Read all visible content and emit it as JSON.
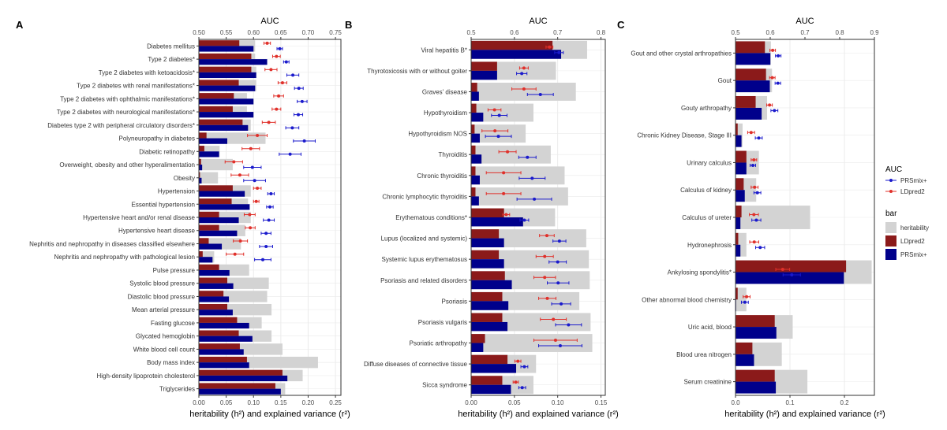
{
  "chart_data": [
    {
      "type": "bar",
      "panel": "A",
      "title_top": "AUC",
      "xlabel": "heritability (h²) and explained variance (r²)",
      "xlim": [
        0,
        0.26
      ],
      "x_ticks": [
        0.0,
        0.05,
        0.1,
        0.15,
        0.2,
        0.25
      ],
      "x_tick_labels": [
        "0.00",
        "0.05",
        "0.10",
        "0.15",
        "0.20",
        "0.25"
      ],
      "auc_lim": [
        0.5,
        0.76
      ],
      "auc_ticks": [
        0.5,
        0.55,
        0.6,
        0.65,
        0.7,
        0.75
      ],
      "auc_tick_labels": [
        "0.50",
        "0.55",
        "0.60",
        "0.65",
        "0.70",
        "0.75"
      ],
      "categories": [
        "Diabetes mellitus",
        "Type 2 diabetes*",
        "Type 2 diabetes with ketoacidosis*",
        "Type 2 diabetes with renal manifestations*",
        "Type 2 diabetes with ophthalmic manifestations*",
        "Type 2 diabetes with neurological manifestations*",
        "Diabetes type 2 with peripheral circulatory disorders*",
        "Polyneuropathy in diabetes",
        "Diabetic retinopathy",
        "Overweight, obesity and other hyperalimentation",
        "Obesity",
        "Hypertension",
        "Essential hypertension",
        "Hypertensive heart and/or renal disease",
        "Hypertensive heart disease",
        "Nephritis and nephropathy in diseases classified elsewhere",
        "Nephritis and nephropathy with pathological lesion",
        "Pulse pressure",
        "Systolic blood pressure",
        "Diastolic blood pressure",
        "Mean arterial pressure",
        "Fasting glucose",
        "Glycated hemoglobin",
        "White blood cell count",
        "Body mass index",
        "High-density lipoprotein cholesterol",
        "Triglycerides"
      ],
      "series": [
        {
          "name": "heritability",
          "values": [
            0.103,
            0.103,
            0.105,
            0.105,
            0.088,
            0.088,
            0.095,
            0.122,
            0.038,
            0.062,
            0.035,
            0.095,
            0.09,
            0.095,
            0.085,
            0.077,
            0.028,
            0.092,
            0.128,
            0.125,
            0.133,
            0.115,
            0.133,
            0.153,
            0.218,
            0.19,
            0.158
          ]
        },
        {
          "name": "LDpred2",
          "values": [
            0.074,
            0.096,
            0.096,
            0.073,
            0.064,
            0.062,
            0.08,
            0.014,
            0.01,
            0.004,
            0.002,
            0.062,
            0.06,
            0.037,
            0.037,
            0.018,
            0.007,
            0.037,
            0.052,
            0.045,
            0.052,
            0.07,
            0.073,
            0.075,
            0.088,
            0.153,
            0.14
          ]
        },
        {
          "name": "PRSmix+",
          "values": [
            0.1,
            0.125,
            0.105,
            0.103,
            0.1,
            0.1,
            0.09,
            0.052,
            0.037,
            0.006,
            0.005,
            0.084,
            0.093,
            0.073,
            0.07,
            0.042,
            0.025,
            0.056,
            0.063,
            0.055,
            0.062,
            0.092,
            0.098,
            0.082,
            0.092,
            0.162,
            0.15
          ]
        }
      ],
      "auc_ldpred2": [
        [
          0.625,
          0.006
        ],
        [
          0.642,
          0.007
        ],
        [
          0.632,
          0.011
        ],
        [
          0.653,
          0.008
        ],
        [
          0.646,
          0.009
        ],
        [
          0.642,
          0.008
        ],
        [
          0.628,
          0.012
        ],
        [
          0.607,
          0.018
        ],
        [
          0.595,
          0.016
        ],
        [
          0.564,
          0.016
        ],
        [
          0.575,
          0.016
        ],
        [
          0.607,
          0.007
        ],
        [
          0.605,
          0.005
        ],
        [
          0.593,
          0.01
        ],
        [
          0.594,
          0.009
        ],
        [
          0.576,
          0.013
        ],
        [
          0.566,
          0.016
        ]
      ],
      "auc_prsmix": [
        [
          0.648,
          0.005
        ],
        [
          0.66,
          0.005
        ],
        [
          0.672,
          0.011
        ],
        [
          0.683,
          0.008
        ],
        [
          0.689,
          0.009
        ],
        [
          0.682,
          0.008
        ],
        [
          0.671,
          0.012
        ],
        [
          0.693,
          0.02
        ],
        [
          0.667,
          0.02
        ],
        [
          0.598,
          0.016
        ],
        [
          0.602,
          0.02
        ],
        [
          0.632,
          0.006
        ],
        [
          0.63,
          0.006
        ],
        [
          0.628,
          0.01
        ],
        [
          0.623,
          0.009
        ],
        [
          0.623,
          0.012
        ],
        [
          0.617,
          0.015
        ]
      ]
    },
    {
      "type": "bar",
      "panel": "B",
      "title_top": "AUC",
      "xlabel": "heritability (h²) and explained variance (r²)",
      "xlim": [
        0,
        0.155
      ],
      "x_ticks": [
        0.0,
        0.05,
        0.1,
        0.15
      ],
      "x_tick_labels": [
        "0.00",
        "0.05",
        "0.10",
        "0.15"
      ],
      "auc_lim": [
        0.5,
        0.81
      ],
      "auc_ticks": [
        0.5,
        0.6,
        0.7,
        0.8
      ],
      "auc_tick_labels": [
        "0.5",
        "0.6",
        "0.7",
        "0.8"
      ],
      "categories": [
        "Viral hepatitis B*",
        "Thyrotoxicosis with or without goiter",
        "Graves' disease",
        "Hypothyroidism",
        "Hypothyroidism NOS",
        "Thyroiditis",
        "Chronic thyroiditis",
        "Chronic lymphocytic thyroiditis",
        "Erythematous conditions*",
        "Lupus (localized and systemic)",
        "Systemic lupus erythematosus",
        "Psoriasis and related disorders",
        "Psoriasis",
        "Psoriasis vulgaris",
        "Psoriatic arthropathy",
        "Diffuse diseases of connective tissue",
        "Sicca syndrome"
      ],
      "series": [
        {
          "name": "heritability",
          "values": [
            0.134,
            0.098,
            0.121,
            0.072,
            0.063,
            0.092,
            0.108,
            0.112,
            0.097,
            0.133,
            0.136,
            0.137,
            0.125,
            0.138,
            0.14,
            0.075,
            0.072
          ]
        },
        {
          "name": "LDpred2",
          "values": [
            0.094,
            0.03,
            0.007,
            0.006,
            0.004,
            0.005,
            0.005,
            0.005,
            0.038,
            0.032,
            0.032,
            0.039,
            0.036,
            0.036,
            0.016,
            0.042,
            0.036
          ]
        },
        {
          "name": "PRSmix+",
          "values": [
            0.104,
            0.03,
            0.009,
            0.014,
            0.01,
            0.012,
            0.01,
            0.009,
            0.06,
            0.038,
            0.038,
            0.047,
            0.043,
            0.042,
            0.014,
            0.052,
            0.046
          ]
        }
      ],
      "auc_ldpred2": [
        [
          0.681,
          0.008
        ],
        [
          0.622,
          0.01
        ],
        [
          0.622,
          0.028
        ],
        [
          0.554,
          0.015
        ],
        [
          0.555,
          0.03
        ],
        [
          0.584,
          0.02
        ],
        [
          0.575,
          0.04
        ],
        [
          0.575,
          0.04
        ],
        [
          0.581,
          0.008
        ],
        [
          0.675,
          0.017
        ],
        [
          0.67,
          0.02
        ],
        [
          0.67,
          0.025
        ],
        [
          0.676,
          0.02
        ],
        [
          0.69,
          0.03
        ],
        [
          0.695,
          0.05
        ],
        [
          0.608,
          0.007
        ],
        [
          0.603,
          0.006
        ]
      ],
      "auc_prsmix": [
        [
          0.703,
          0.01
        ],
        [
          0.617,
          0.012
        ],
        [
          0.66,
          0.03
        ],
        [
          0.565,
          0.018
        ],
        [
          0.563,
          0.03
        ],
        [
          0.63,
          0.02
        ],
        [
          0.641,
          0.03
        ],
        [
          0.646,
          0.04
        ],
        [
          0.623,
          0.01
        ],
        [
          0.704,
          0.015
        ],
        [
          0.7,
          0.02
        ],
        [
          0.701,
          0.025
        ],
        [
          0.708,
          0.022
        ],
        [
          0.725,
          0.03
        ],
        [
          0.706,
          0.05
        ],
        [
          0.623,
          0.008
        ],
        [
          0.618,
          0.008
        ]
      ]
    },
    {
      "type": "bar",
      "panel": "C",
      "title_top": "AUC",
      "xlabel": "heritability (h²) and explained variance (r²)",
      "xlim": [
        0,
        0.255
      ],
      "x_ticks": [
        0.0,
        0.1,
        0.2
      ],
      "x_tick_labels": [
        "0.0",
        "0.1",
        "0.2"
      ],
      "auc_lim": [
        0.5,
        0.9
      ],
      "auc_ticks": [
        0.5,
        0.6,
        0.7,
        0.8,
        0.9
      ],
      "auc_tick_labels": [
        "0.5",
        "0.6",
        "0.7",
        "0.8",
        "0.9"
      ],
      "categories": [
        "Gout and other crystal arthropathies",
        "Gout",
        "Gouty arthropathy",
        "Chronic Kidney Disease, Stage III",
        "Urinary calculus",
        "Calculus of kidney",
        "Calculus of ureter",
        "Hydronephrosis",
        "Ankylosing spondylitis*",
        "Other abnormal blood chemistry",
        "Uric acid, blood",
        "Blood urea nitrogen",
        "Serum creatinine"
      ],
      "series": [
        {
          "name": "heritability",
          "values": [
            0.065,
            0.067,
            0.058,
            0.013,
            0.043,
            0.038,
            0.137,
            0.02,
            0.25,
            0.02,
            0.105,
            0.085,
            0.132
          ]
        },
        {
          "name": "LDpred2",
          "values": [
            0.054,
            0.056,
            0.037,
            0.004,
            0.02,
            0.015,
            0.011,
            0.005,
            0.203,
            0.004,
            0.072,
            0.031,
            0.072
          ]
        },
        {
          "name": "PRSmix+",
          "values": [
            0.064,
            0.063,
            0.048,
            0.011,
            0.02,
            0.017,
            0.009,
            0.009,
            0.199,
            0.001,
            0.075,
            0.034,
            0.074
          ]
        }
      ],
      "auc_ldpred2": [
        [
          0.607,
          0.008
        ],
        [
          0.606,
          0.008
        ],
        [
          0.598,
          0.008
        ],
        [
          0.545,
          0.01
        ],
        [
          0.553,
          0.008
        ],
        [
          0.555,
          0.01
        ],
        [
          0.553,
          0.013
        ],
        [
          0.554,
          0.013
        ],
        [
          0.636,
          0.02
        ],
        [
          0.532,
          0.01
        ]
      ],
      "auc_prsmix": [
        [
          0.623,
          0.008
        ],
        [
          0.622,
          0.008
        ],
        [
          0.612,
          0.01
        ],
        [
          0.567,
          0.01
        ],
        [
          0.55,
          0.008
        ],
        [
          0.563,
          0.01
        ],
        [
          0.56,
          0.013
        ],
        [
          0.571,
          0.013
        ],
        [
          0.662,
          0.025
        ],
        [
          0.527,
          0.01
        ]
      ]
    }
  ],
  "legend": {
    "auc_title": "AUC",
    "auc_items": [
      {
        "label": "PRSmix+",
        "color": "#1a1acc"
      },
      {
        "label": "LDpred2",
        "color": "#e0302a"
      }
    ],
    "bar_title": "bar",
    "bar_items": [
      {
        "label": "heritability",
        "color": "#d3d3d3"
      },
      {
        "label": "LDpred2",
        "color": "#8b1a1a"
      },
      {
        "label": "PRSmix+",
        "color": "#00008b"
      }
    ]
  },
  "colors": {
    "heritability": "#d3d3d3",
    "ldpred2_bar": "#8b1a1a",
    "prsmix_bar": "#00008b",
    "ldpred2_point": "#e0302a",
    "prsmix_point": "#1a1acc",
    "grid": "#ebebeb"
  }
}
